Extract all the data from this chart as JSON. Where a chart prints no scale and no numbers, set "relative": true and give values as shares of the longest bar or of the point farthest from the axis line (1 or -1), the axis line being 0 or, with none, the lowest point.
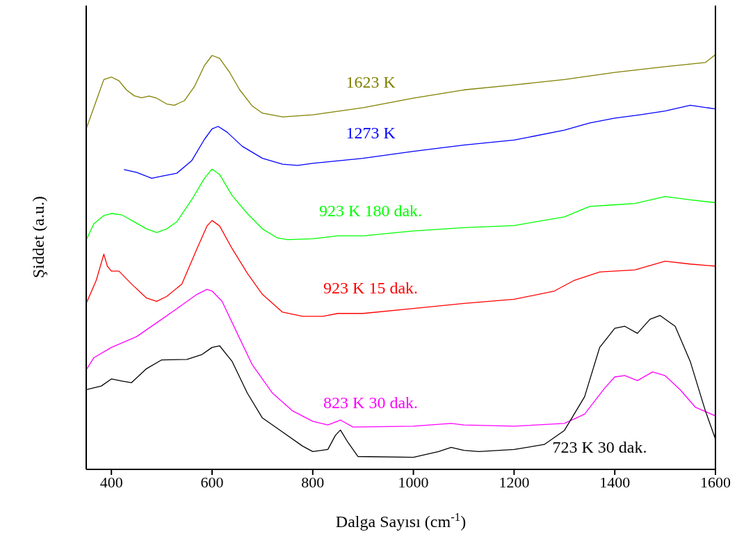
{
  "chart_data": {
    "type": "line",
    "relative": true,
    "xlabel": "Dalga Sayısı (cm$^{-1}$)",
    "ylabel": "Şiddet (a.u.)",
    "xlim": [
      350,
      1600
    ],
    "xticks": [
      400,
      600,
      800,
      1000,
      1200,
      1400,
      1600
    ],
    "legend": false,
    "marker": "none",
    "series": [
      {
        "name": "1623 K",
        "color": "#808000",
        "x": [
          350,
          370,
          385,
          400,
          415,
          430,
          445,
          460,
          475,
          490,
          510,
          525,
          545,
          565,
          585,
          600,
          615,
          635,
          655,
          680,
          700,
          740,
          800,
          900,
          1000,
          1100,
          1200,
          1300,
          1400,
          1500,
          1580,
          1600
        ],
        "values": [
          0.821,
          0.889,
          0.94,
          0.946,
          0.937,
          0.915,
          0.901,
          0.896,
          0.9,
          0.895,
          0.881,
          0.878,
          0.889,
          0.923,
          0.974,
          0.998,
          0.991,
          0.957,
          0.915,
          0.876,
          0.859,
          0.85,
          0.855,
          0.872,
          0.895,
          0.915,
          0.927,
          0.94,
          0.957,
          0.971,
          0.981,
          1
        ]
      },
      {
        "name": "1273 K",
        "color": "#0000ff",
        "x": [
          425,
          450,
          480,
          500,
          530,
          560,
          585,
          600,
          612,
          630,
          660,
          700,
          740,
          770,
          800,
          900,
          1000,
          1100,
          1200,
          1300,
          1350,
          1400,
          1450,
          1500,
          1550,
          1600
        ],
        "values": [
          0.723,
          0.716,
          0.702,
          0.707,
          0.714,
          0.745,
          0.796,
          0.821,
          0.827,
          0.813,
          0.779,
          0.75,
          0.736,
          0.733,
          0.738,
          0.75,
          0.767,
          0.782,
          0.794,
          0.818,
          0.835,
          0.847,
          0.855,
          0.864,
          0.878,
          0.869
        ]
      },
      {
        "name": "923 K 180 dak.",
        "color": "#00ff00",
        "x": [
          350,
          365,
          385,
          400,
          420,
          445,
          470,
          490,
          510,
          530,
          560,
          585,
          600,
          615,
          640,
          670,
          700,
          730,
          750,
          800,
          850,
          900,
          1000,
          1100,
          1200,
          1300,
          1350,
          1400,
          1440,
          1500,
          1550,
          1600
        ],
        "values": [
          0.553,
          0.592,
          0.612,
          0.617,
          0.614,
          0.597,
          0.58,
          0.571,
          0.58,
          0.597,
          0.651,
          0.702,
          0.724,
          0.711,
          0.66,
          0.617,
          0.58,
          0.558,
          0.554,
          0.556,
          0.563,
          0.563,
          0.575,
          0.583,
          0.588,
          0.609,
          0.634,
          0.638,
          0.641,
          0.658,
          0.65,
          0.643
        ]
      },
      {
        "name": "923 K 15 dak.",
        "color": "#ff0000",
        "x": [
          350,
          370,
          380,
          385,
          392,
          400,
          415,
          440,
          470,
          490,
          510,
          540,
          570,
          590,
          600,
          615,
          640,
          670,
          700,
          740,
          780,
          820,
          850,
          900,
          1000,
          1100,
          1200,
          1280,
          1320,
          1370,
          1440,
          1500,
          1550,
          1600
        ],
        "values": [
          0.4,
          0.456,
          0.498,
          0.519,
          0.49,
          0.478,
          0.478,
          0.447,
          0.413,
          0.405,
          0.417,
          0.447,
          0.532,
          0.587,
          0.6,
          0.587,
          0.532,
          0.473,
          0.422,
          0.379,
          0.369,
          0.369,
          0.376,
          0.376,
          0.388,
          0.4,
          0.41,
          0.43,
          0.456,
          0.476,
          0.481,
          0.502,
          0.495,
          0.49
        ]
      },
      {
        "name": "823 K 30 dak.",
        "color": "#ff00ff",
        "x": [
          350,
          365,
          400,
          450,
          500,
          540,
          570,
          590,
          600,
          620,
          650,
          680,
          720,
          760,
          800,
          830,
          855,
          880,
          1000,
          1075,
          1100,
          1200,
          1300,
          1340,
          1380,
          1400,
          1420,
          1445,
          1475,
          1500,
          1530,
          1560,
          1600
        ],
        "values": [
          0.24,
          0.269,
          0.294,
          0.32,
          0.362,
          0.396,
          0.422,
          0.434,
          0.43,
          0.405,
          0.328,
          0.252,
          0.184,
          0.141,
          0.116,
          0.107,
          0.119,
          0.102,
          0.104,
          0.111,
          0.107,
          0.104,
          0.111,
          0.133,
          0.196,
          0.223,
          0.226,
          0.214,
          0.235,
          0.226,
          0.192,
          0.15,
          0.129
        ]
      },
      {
        "name": "723 K 30 dak.",
        "color": "#000000",
        "x": [
          350,
          380,
          400,
          420,
          440,
          470,
          500,
          550,
          580,
          600,
          615,
          640,
          670,
          700,
          740,
          780,
          800,
          830,
          845,
          855,
          870,
          890,
          1000,
          1050,
          1075,
          1100,
          1130,
          1200,
          1260,
          1300,
          1340,
          1370,
          1400,
          1420,
          1445,
          1470,
          1490,
          1520,
          1550,
          1580,
          1600
        ],
        "values": [
          0.192,
          0.201,
          0.218,
          0.213,
          0.209,
          0.243,
          0.264,
          0.265,
          0.277,
          0.294,
          0.298,
          0.26,
          0.184,
          0.124,
          0.09,
          0.056,
          0.043,
          0.048,
          0.082,
          0.095,
          0.065,
          0.031,
          0.029,
          0.043,
          0.053,
          0.046,
          0.043,
          0.048,
          0.06,
          0.094,
          0.175,
          0.294,
          0.34,
          0.345,
          0.328,
          0.362,
          0.371,
          0.345,
          0.26,
          0.141,
          0.073
        ]
      }
    ]
  }
}
